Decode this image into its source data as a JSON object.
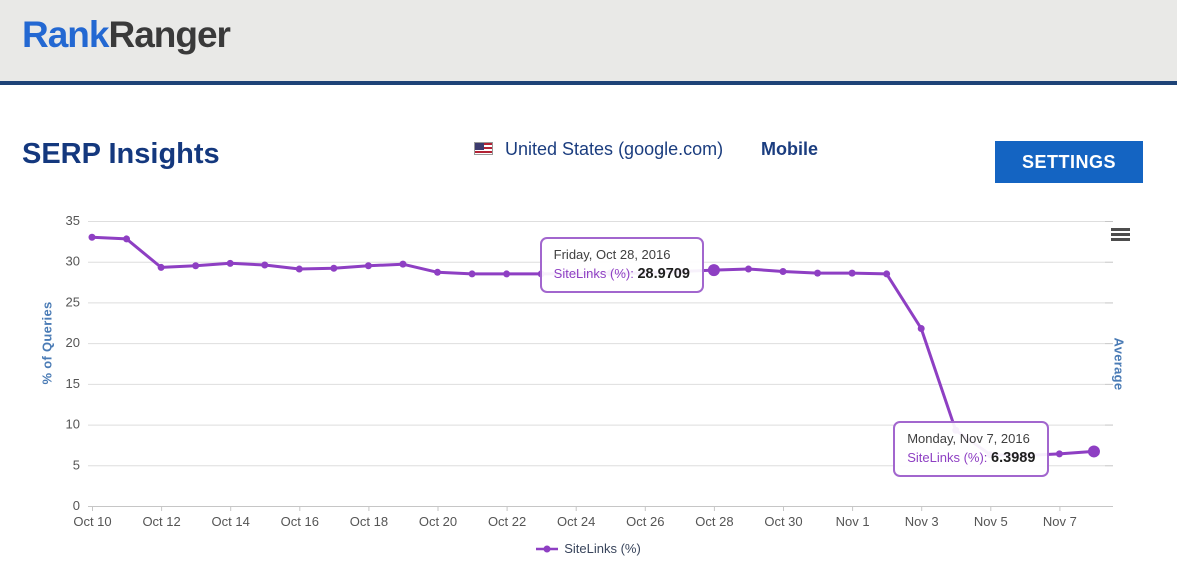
{
  "header": {
    "logo_primary": "Rank",
    "logo_secondary": "Ranger"
  },
  "page": {
    "title": "SERP Insights",
    "location_label": "United States (google.com)",
    "device_label": "Mobile",
    "settings_button_label": "SETTINGS"
  },
  "chart": {
    "right_axis_title": "Average",
    "menu_icon": "hamburger-icon",
    "accent_color": "#8E3FC3",
    "tooltips": [
      {
        "date": "Friday, Oct 28, 2016",
        "series_label": "SiteLinks (%):",
        "value": "28.9709",
        "point_index": 18
      },
      {
        "date": "Monday, Nov 7, 2016",
        "series_label": "SiteLinks (%):",
        "value": "6.3989",
        "point_index": 28
      }
    ]
  },
  "chart_data": {
    "type": "line",
    "title": "",
    "xlabel": "",
    "ylabel": "% of Queries",
    "ylim": [
      0,
      35
    ],
    "y_ticks": [
      0,
      5,
      10,
      15,
      20,
      25,
      30,
      35
    ],
    "grid": true,
    "legend_position": "bottom",
    "x": [
      "Oct 10",
      "Oct 11",
      "Oct 12",
      "Oct 13",
      "Oct 14",
      "Oct 15",
      "Oct 16",
      "Oct 17",
      "Oct 18",
      "Oct 19",
      "Oct 20",
      "Oct 21",
      "Oct 22",
      "Oct 23",
      "Oct 24",
      "Oct 25",
      "Oct 26",
      "Oct 27",
      "Oct 28",
      "Oct 29",
      "Oct 30",
      "Oct 31",
      "Nov 1",
      "Nov 2",
      "Nov 3",
      "Nov 4",
      "Nov 5",
      "Nov 6",
      "Nov 7",
      "Nov 8"
    ],
    "x_tick_labels": [
      "Oct 10",
      "Oct 12",
      "Oct 14",
      "Oct 16",
      "Oct 18",
      "Oct 20",
      "Oct 22",
      "Oct 24",
      "Oct 26",
      "Oct 28",
      "Oct 30",
      "Nov 1",
      "Nov 3",
      "Nov 5",
      "Nov 7"
    ],
    "series": [
      {
        "name": "SiteLinks (%)",
        "color": "#8E3FC3",
        "values": [
          33.0,
          32.8,
          29.3,
          29.5,
          29.8,
          29.6,
          29.1,
          29.2,
          29.5,
          29.7,
          28.7,
          28.5,
          28.5,
          28.5,
          28.5,
          28.6,
          28.6,
          28.8,
          28.9709,
          29.1,
          28.8,
          28.6,
          28.6,
          28.5,
          21.8,
          9.3,
          6.3,
          6.2,
          6.3989,
          6.7
        ]
      }
    ],
    "highlighted_points": [
      18,
      29
    ]
  }
}
